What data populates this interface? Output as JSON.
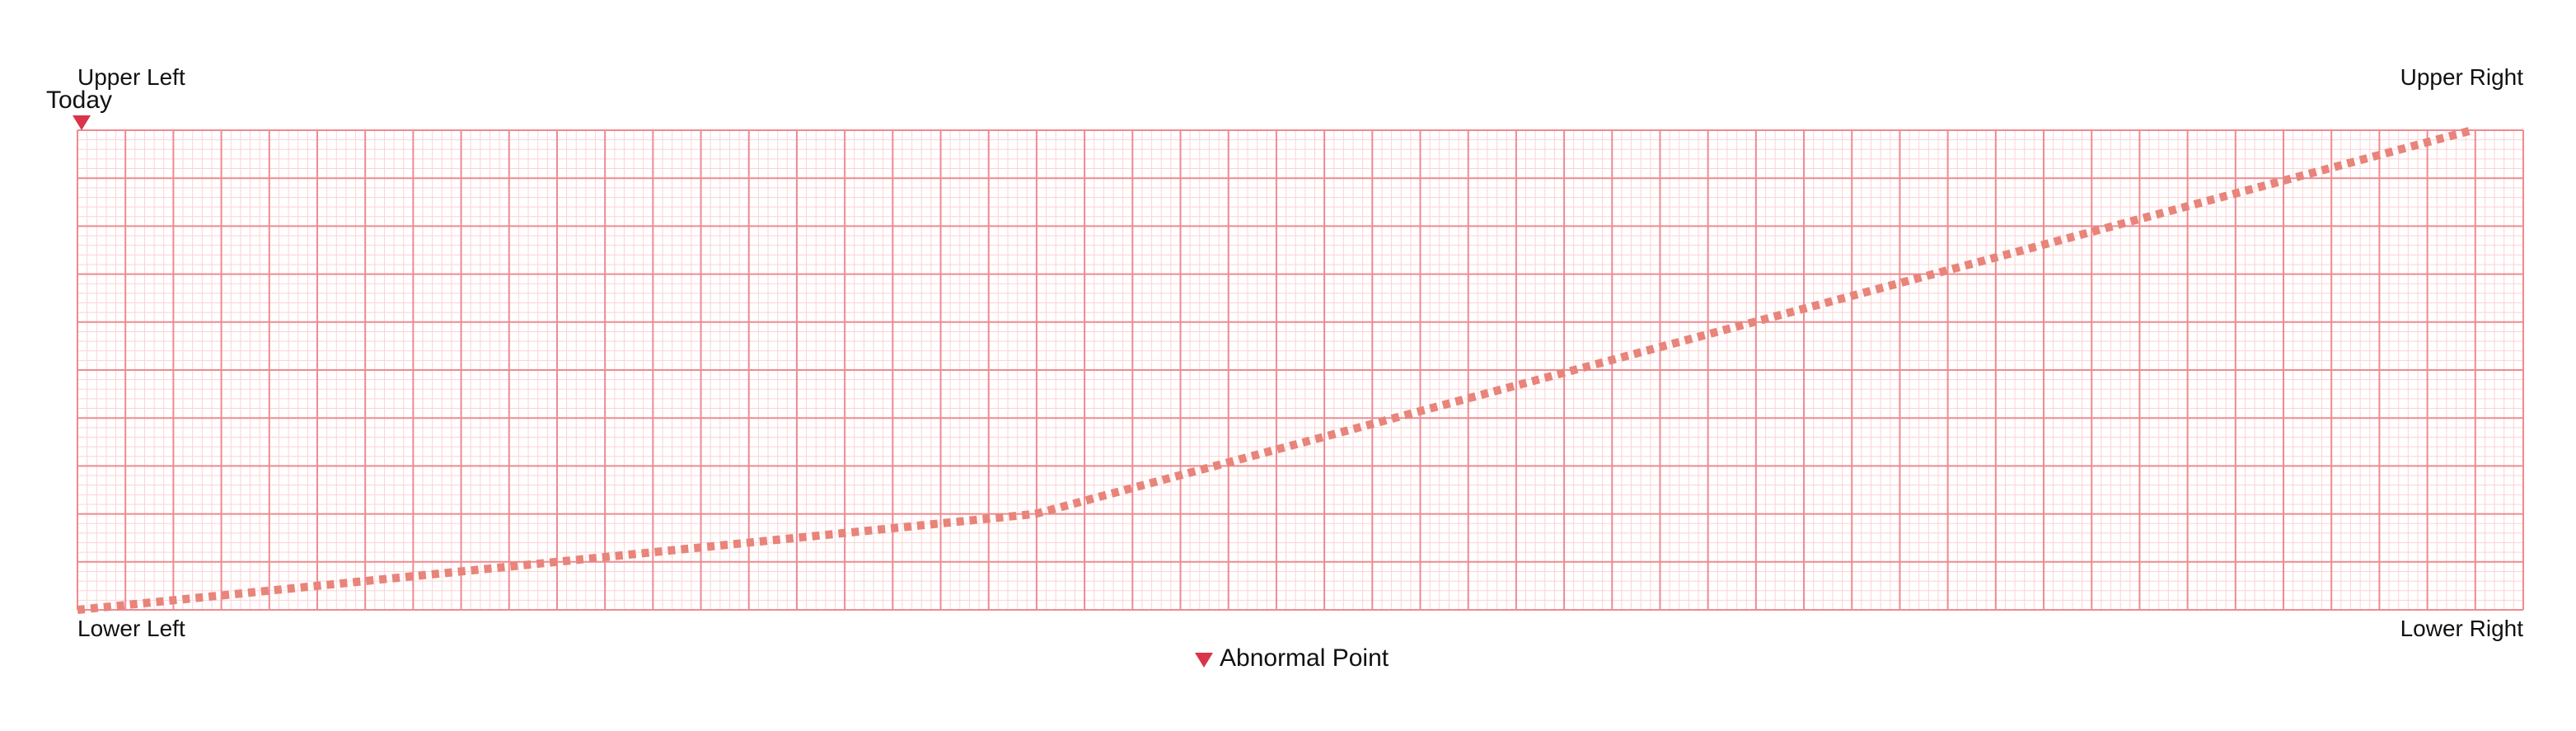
{
  "chart_data": {
    "type": "line",
    "x_range": [
      0,
      50
    ],
    "y_range": [
      0,
      10
    ],
    "series": [
      {
        "style": "dashed",
        "color": "#e8847a",
        "points": [
          {
            "x": 0,
            "y": 0
          },
          {
            "x": 20,
            "y": 2
          },
          {
            "x": 50,
            "y": 10
          }
        ]
      }
    ],
    "grid": {
      "major_color": "#f08a8f",
      "minor_color": "#fbd3d5",
      "x_major_divisions": 51,
      "y_major_divisions": 10,
      "minor_per_major": 5
    },
    "corner_labels": {
      "upper_left": "Upper Left",
      "upper_right": "Upper Right",
      "lower_left": "Lower Left",
      "lower_right": "Lower Right"
    },
    "markers": [
      {
        "label": "Today",
        "position": "top",
        "x": 0,
        "color": "#d9344a"
      },
      {
        "label": "Abnormal Point",
        "position": "bottom",
        "x": 23.5,
        "color": "#d9344a"
      }
    ]
  }
}
